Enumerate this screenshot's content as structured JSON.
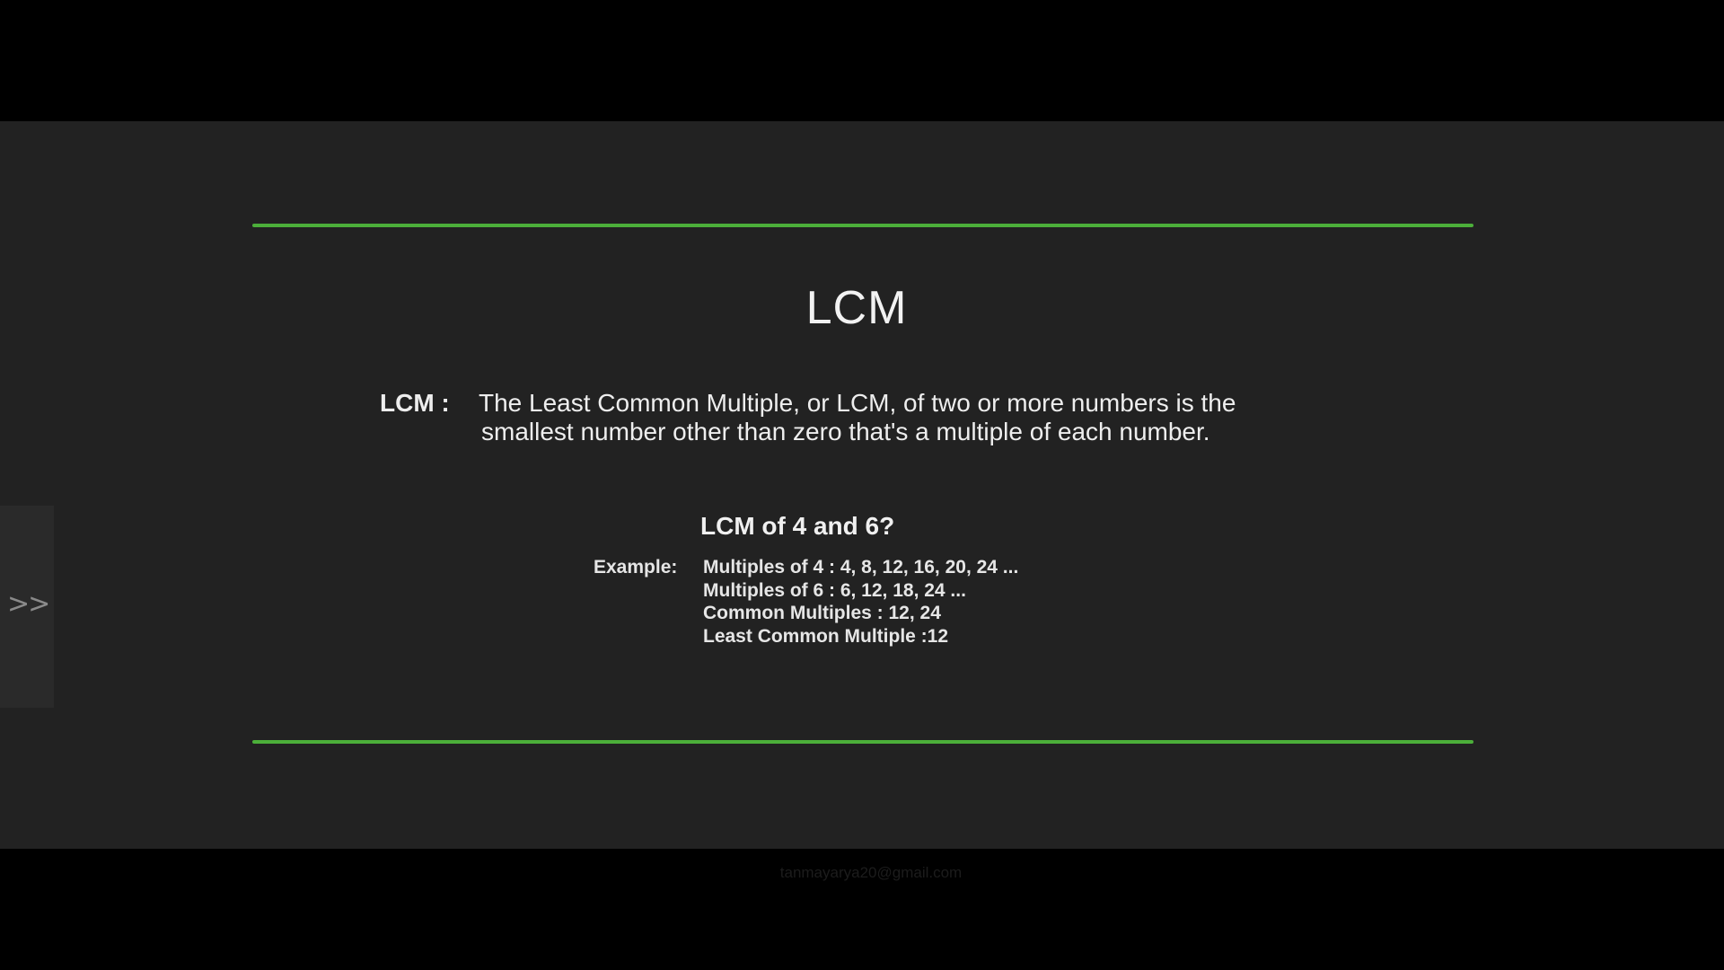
{
  "slide": {
    "title": "LCM",
    "definition": {
      "term": "LCM :",
      "line1": "The Least Common Multiple, or LCM, of two or more numbers is the",
      "line2": "smallest number other than zero that's a multiple of each number."
    },
    "question": "LCM of 4 and 6?",
    "example": {
      "label": "Example:",
      "lines": [
        "Multiples of 4 :  4, 8, 12, 16, 20, 24 ...",
        "Multiples of 6 :  6, 12, 18, 24 ...",
        "Common Multiples : 12, 24",
        "Least Common Multiple :12"
      ]
    },
    "accent_color": "#4caf3a"
  },
  "side_tab": {
    "icon": "double-chevron-right-icon",
    "label": ">>"
  },
  "watermark": {
    "text": "tanmayarya20@gmail.com"
  }
}
